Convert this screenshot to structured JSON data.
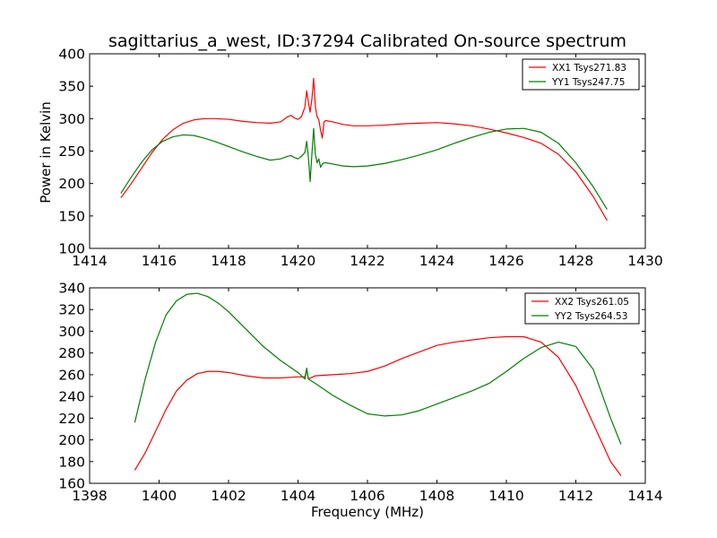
{
  "chart_data": [
    {
      "type": "line",
      "title": "sagittarius_a_west, ID:37294 Calibrated On-source spectrum",
      "xlabel": "",
      "ylabel": "Power in Kelvin",
      "xlim": [
        1414,
        1430
      ],
      "ylim": [
        100,
        400
      ],
      "xticks": [
        1414,
        1416,
        1418,
        1420,
        1422,
        1424,
        1426,
        1428,
        1430
      ],
      "yticks": [
        100,
        150,
        200,
        250,
        300,
        350,
        400
      ],
      "legend_position": "top-right",
      "series": [
        {
          "name": "XX1 Tsys271.83",
          "color": "#ff0000",
          "x": [
            1414.9,
            1415.2,
            1415.5,
            1415.8,
            1416.1,
            1416.4,
            1416.7,
            1417.0,
            1417.3,
            1417.6,
            1418.0,
            1418.4,
            1418.8,
            1419.2,
            1419.5,
            1419.7,
            1419.8,
            1419.9,
            1420.0,
            1420.1,
            1420.2,
            1420.25,
            1420.3,
            1420.35,
            1420.4,
            1420.45,
            1420.5,
            1420.55,
            1420.6,
            1420.65,
            1420.7,
            1420.75,
            1420.8,
            1421.0,
            1421.3,
            1421.6,
            1422.0,
            1422.5,
            1423.0,
            1423.5,
            1424.0,
            1424.5,
            1425.0,
            1425.5,
            1426.0,
            1426.5,
            1427.0,
            1427.5,
            1428.0,
            1428.5,
            1428.9
          ],
          "y": [
            178,
            200,
            224,
            248,
            268,
            283,
            293,
            298,
            300,
            300,
            299,
            296,
            294,
            293,
            295,
            303,
            305,
            301,
            299,
            303,
            318,
            343,
            325,
            310,
            330,
            362,
            318,
            303,
            298,
            282,
            270,
            295,
            297,
            295,
            291,
            289,
            289,
            290,
            292,
            293,
            294,
            292,
            289,
            284,
            278,
            271,
            262,
            245,
            218,
            180,
            143
          ]
        },
        {
          "name": "YY1 Tsys247.75",
          "color": "#008000",
          "x": [
            1414.9,
            1415.2,
            1415.5,
            1415.8,
            1416.1,
            1416.4,
            1416.7,
            1417.0,
            1417.3,
            1417.6,
            1418.0,
            1418.4,
            1418.8,
            1419.2,
            1419.5,
            1419.7,
            1419.8,
            1419.9,
            1420.0,
            1420.1,
            1420.2,
            1420.25,
            1420.3,
            1420.35,
            1420.4,
            1420.45,
            1420.5,
            1420.55,
            1420.6,
            1420.65,
            1420.7,
            1420.75,
            1420.8,
            1421.0,
            1421.3,
            1421.6,
            1422.0,
            1422.5,
            1423.0,
            1423.5,
            1424.0,
            1424.5,
            1425.0,
            1425.5,
            1426.0,
            1426.5,
            1427.0,
            1427.5,
            1428.0,
            1428.5,
            1428.9
          ],
          "y": [
            185,
            210,
            233,
            252,
            265,
            272,
            275,
            274,
            270,
            265,
            257,
            249,
            242,
            236,
            238,
            242,
            243,
            240,
            238,
            242,
            248,
            265,
            240,
            203,
            245,
            285,
            245,
            232,
            238,
            225,
            230,
            232,
            232,
            230,
            227,
            226,
            227,
            231,
            237,
            244,
            252,
            262,
            271,
            279,
            284,
            285,
            279,
            262,
            232,
            195,
            160
          ]
        }
      ]
    },
    {
      "type": "line",
      "title": "",
      "xlabel": "Frequency (MHz)",
      "ylabel": "",
      "xlim": [
        1398,
        1414
      ],
      "ylim": [
        160,
        340
      ],
      "xticks": [
        1398,
        1400,
        1402,
        1404,
        1406,
        1408,
        1410,
        1412,
        1414
      ],
      "yticks": [
        160,
        180,
        200,
        220,
        240,
        260,
        280,
        300,
        320,
        340
      ],
      "legend_position": "top-right",
      "series": [
        {
          "name": "XX2 Tsys261.05",
          "color": "#ff0000",
          "x": [
            1399.3,
            1399.6,
            1399.9,
            1400.2,
            1400.5,
            1400.8,
            1401.1,
            1401.4,
            1401.7,
            1402.0,
            1402.5,
            1403.0,
            1403.5,
            1404.0,
            1404.2,
            1404.25,
            1404.3,
            1404.5,
            1405.0,
            1405.5,
            1406.0,
            1406.5,
            1407.0,
            1407.5,
            1408.0,
            1408.5,
            1409.0,
            1409.5,
            1410.0,
            1410.5,
            1411.0,
            1411.5,
            1412.0,
            1412.5,
            1413.0,
            1413.3
          ],
          "y": [
            172,
            188,
            208,
            228,
            245,
            255,
            261,
            263,
            263,
            262,
            259,
            257,
            257,
            258,
            258,
            265,
            256,
            259,
            260,
            261,
            263,
            268,
            275,
            281,
            287,
            290,
            292,
            294,
            295,
            295,
            290,
            276,
            250,
            215,
            180,
            167
          ]
        },
        {
          "name": "YY2 Tsys264.53",
          "color": "#008000",
          "x": [
            1399.3,
            1399.6,
            1399.9,
            1400.2,
            1400.5,
            1400.8,
            1401.1,
            1401.4,
            1401.7,
            1402.0,
            1402.5,
            1403.0,
            1403.5,
            1404.0,
            1404.2,
            1404.25,
            1404.3,
            1404.5,
            1405.0,
            1405.5,
            1406.0,
            1406.5,
            1407.0,
            1407.5,
            1408.0,
            1408.5,
            1409.0,
            1409.5,
            1410.0,
            1410.5,
            1411.0,
            1411.5,
            1412.0,
            1412.5,
            1413.0,
            1413.3
          ],
          "y": [
            216,
            256,
            290,
            315,
            328,
            334,
            335,
            332,
            326,
            318,
            302,
            286,
            273,
            262,
            256,
            266,
            256,
            252,
            241,
            232,
            224,
            222,
            223,
            227,
            233,
            239,
            245,
            252,
            263,
            275,
            285,
            290,
            286,
            265,
            220,
            196
          ]
        }
      ]
    }
  ]
}
